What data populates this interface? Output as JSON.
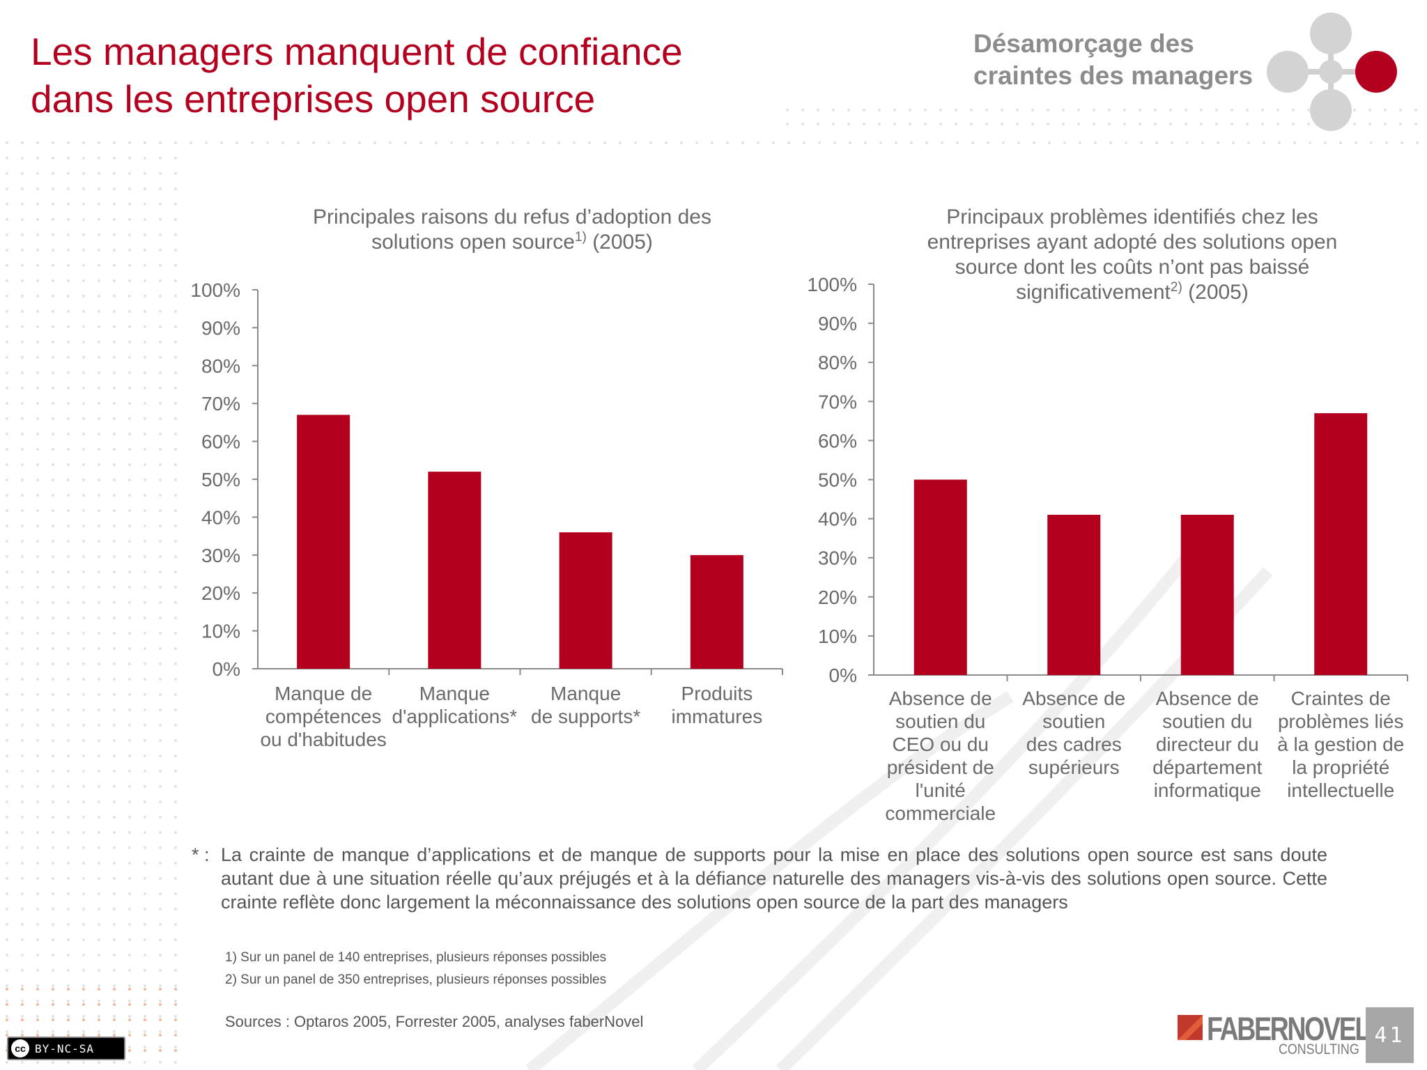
{
  "title": "Les managers manquent de confiance dans les entreprises open source",
  "section_label": "Désamorçage des craintes des managers",
  "colors": {
    "accent": "#b2001e",
    "grey": "#8c8c8c",
    "bar": "#b2001e"
  },
  "chart_data": [
    {
      "type": "bar",
      "title": "Principales raisons du refus d’adoption des solutions open source",
      "title_sup": "1)",
      "title_suffix": "(2005)",
      "categories": [
        [
          "Manque de",
          "compétences",
          "ou d'habitudes"
        ],
        [
          "Manque",
          "d'applications*"
        ],
        [
          "Manque",
          "de supports*"
        ],
        [
          "Produits",
          "immatures"
        ]
      ],
      "values": [
        67,
        52,
        36,
        30
      ],
      "ylim": [
        0,
        100
      ],
      "yticks": [
        "0%",
        "10%",
        "20%",
        "30%",
        "40%",
        "50%",
        "60%",
        "70%",
        "80%",
        "90%",
        "100%"
      ],
      "grid": false
    },
    {
      "type": "bar",
      "title": "Principaux problèmes identifiés chez les entreprises ayant adopté des solutions open source dont les coûts n’ont pas baissé significativement",
      "title_sup": "2)",
      "title_suffix": "(2005)",
      "categories": [
        [
          "Absence de",
          "soutien du",
          "CEO ou du",
          "président de",
          "l'unité",
          "commerciale"
        ],
        [
          "Absence de",
          "soutien",
          "des cadres",
          "supérieurs"
        ],
        [
          "Absence de",
          "soutien du",
          "directeur du",
          "département",
          "informatique"
        ],
        [
          "Craintes de",
          "problèmes liés",
          "à la gestion de",
          "la propriété",
          "intellectuelle"
        ]
      ],
      "values": [
        50,
        41,
        41,
        67
      ],
      "ylim": [
        0,
        100
      ],
      "yticks": [
        "0%",
        "10%",
        "20%",
        "30%",
        "40%",
        "50%",
        "60%",
        "70%",
        "80%",
        "90%",
        "100%"
      ],
      "grid": false
    }
  ],
  "footnote": {
    "mark": "* :",
    "text": "La crainte de manque d’applications et de manque de supports pour la mise en place des solutions open source est sans doute autant due à une situation réelle qu’aux préjugés et à la défiance naturelle des managers vis-à-vis des solutions open source. Cette crainte reflète donc largement la méconnaissance des solutions open source de la part des managers"
  },
  "notes": [
    "1)  Sur un panel de 140 entreprises, plusieurs réponses possibles",
    "2)  Sur un panel de 350 entreprises, plusieurs réponses  possibles"
  ],
  "sources": "Sources : Optaros  2005, Forrester 2005, analyses faberNovel",
  "license": {
    "cc": "cc",
    "text": "BY-NC-SA"
  },
  "logo": {
    "name": "FABERNOVEL",
    "sub": "CONSULTING"
  },
  "page_number": "41"
}
